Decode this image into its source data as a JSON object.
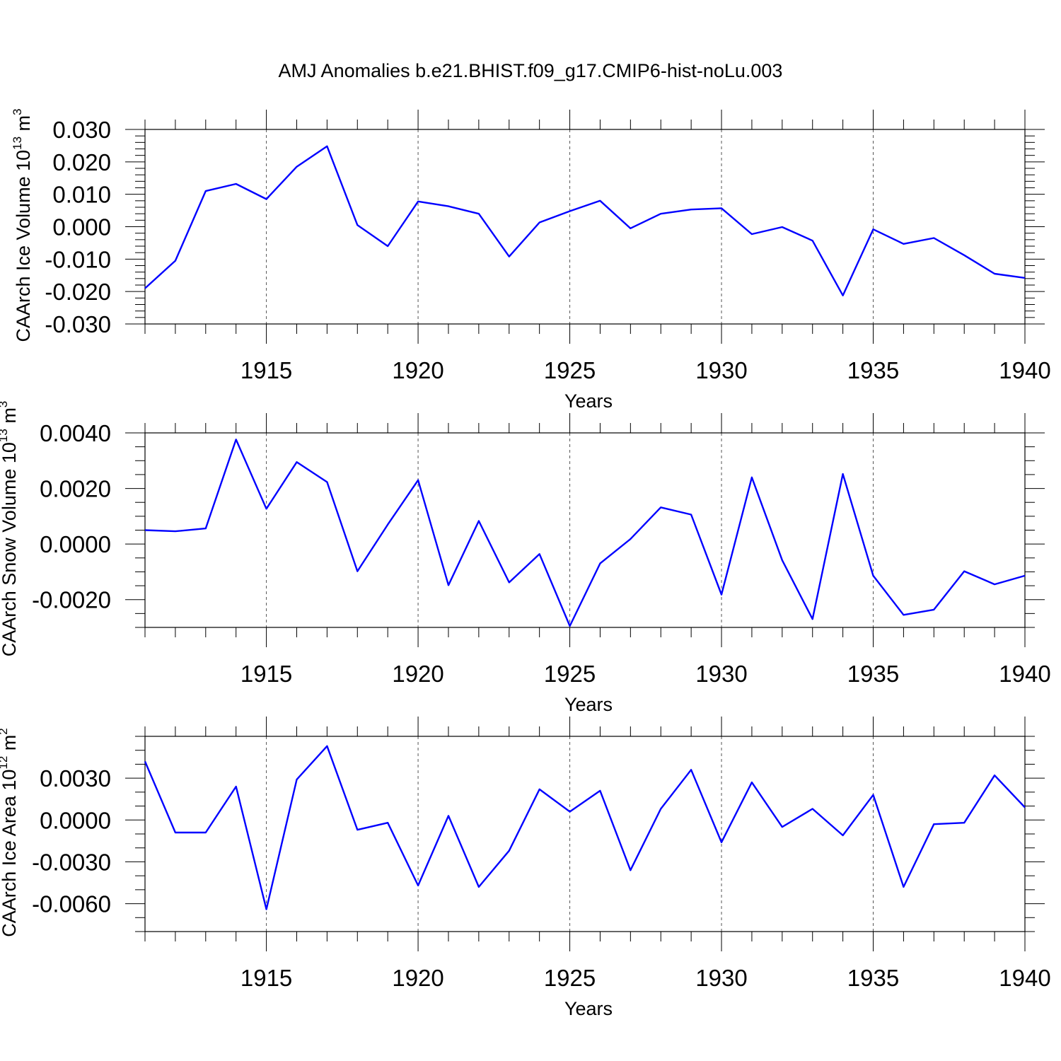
{
  "title": "AMJ Anomalies b.e21.BHIST.f09_g17.CMIP6-hist-noLu.003",
  "chart_data": [
    {
      "type": "line",
      "xlabel": "Years",
      "ylabel": {
        "text": "CAArch Ice Volume 10",
        "exp": "13",
        "unit": " m",
        "unit_exp": "3"
      },
      "xlim": [
        1911,
        1940
      ],
      "ylim": [
        -0.03,
        0.03
      ],
      "xticks": [
        1915,
        1920,
        1925,
        1930,
        1935,
        1940
      ],
      "yticks": [
        -0.03,
        -0.02,
        -0.01,
        0.0,
        0.01,
        0.02,
        0.03
      ],
      "ytick_labels": [
        "-0.030",
        "-0.020",
        "-0.010",
        "0.000",
        "0.010",
        "0.020",
        "0.030"
      ],
      "ytick_minor_step": 0.002,
      "grid_x": [
        1915,
        1920,
        1925,
        1930,
        1935
      ],
      "line_color": "#0000ff",
      "x": [
        1911,
        1912,
        1913,
        1914,
        1915,
        1916,
        1917,
        1918,
        1919,
        1920,
        1921,
        1922,
        1923,
        1924,
        1925,
        1926,
        1927,
        1928,
        1929,
        1930,
        1931,
        1932,
        1933,
        1934,
        1935,
        1936,
        1937,
        1938,
        1939,
        1940
      ],
      "values": [
        -0.019,
        -0.0105,
        0.011,
        0.0132,
        0.0085,
        0.0185,
        0.0248,
        0.0005,
        -0.006,
        0.0078,
        0.0063,
        0.004,
        -0.0092,
        0.0013,
        0.0048,
        0.008,
        -0.0005,
        0.004,
        0.0053,
        0.0057,
        -0.0023,
        -0.0001,
        -0.0043,
        -0.0212,
        -0.0008,
        -0.0053,
        -0.0035,
        -0.0088,
        -0.0145,
        -0.0158
      ]
    },
    {
      "type": "line",
      "xlabel": "Years",
      "ylabel": {
        "text": "CAArch Snow Volume 10",
        "exp": "13",
        "unit": " m",
        "unit_exp": "3"
      },
      "xlim": [
        1911,
        1940
      ],
      "ylim": [
        -0.003,
        0.004
      ],
      "xticks": [
        1915,
        1920,
        1925,
        1930,
        1935,
        1940
      ],
      "yticks": [
        -0.002,
        0.0,
        0.002,
        0.004
      ],
      "ytick_labels": [
        "-0.0020",
        "0.0000",
        "0.0020",
        "0.0040"
      ],
      "ytick_minor_step": 0.0005,
      "grid_x": [
        1915,
        1920,
        1925,
        1930,
        1935
      ],
      "line_color": "#0000ff",
      "x": [
        1911,
        1912,
        1913,
        1914,
        1915,
        1916,
        1917,
        1918,
        1919,
        1920,
        1921,
        1922,
        1923,
        1924,
        1925,
        1926,
        1927,
        1928,
        1929,
        1930,
        1931,
        1932,
        1933,
        1934,
        1935,
        1936,
        1937,
        1938,
        1939,
        1940
      ],
      "values": [
        0.0005,
        0.00046,
        0.00056,
        0.00376,
        0.00127,
        0.00295,
        0.00223,
        -0.00098,
        0.0007,
        0.0023,
        -0.00148,
        0.00083,
        -0.00138,
        -0.00036,
        -0.00295,
        -0.0007,
        0.00018,
        0.00132,
        0.00106,
        -0.00182,
        0.0024,
        -0.00058,
        -0.0027,
        0.00252,
        -0.00114,
        -0.00255,
        -0.00236,
        -0.00098,
        -0.00145,
        -0.00114
      ]
    },
    {
      "type": "line",
      "xlabel": "Years",
      "ylabel": {
        "text": "CAArch Ice Area 10",
        "exp": "12",
        "unit": " m",
        "unit_exp": "2"
      },
      "xlim": [
        1911,
        1940
      ],
      "ylim": [
        -0.008,
        0.006
      ],
      "xticks": [
        1915,
        1920,
        1925,
        1930,
        1935,
        1940
      ],
      "yticks": [
        -0.006,
        -0.003,
        0.0,
        0.003
      ],
      "ytick_labels": [
        "-0.0060",
        "-0.0030",
        "0.0000",
        "0.0030"
      ],
      "ytick_minor_step": 0.001,
      "grid_x": [
        1915,
        1920,
        1925,
        1930,
        1935
      ],
      "line_color": "#0000ff",
      "x": [
        1911,
        1912,
        1913,
        1914,
        1915,
        1916,
        1917,
        1918,
        1919,
        1920,
        1921,
        1922,
        1923,
        1924,
        1925,
        1926,
        1927,
        1928,
        1929,
        1930,
        1931,
        1932,
        1933,
        1934,
        1935,
        1936,
        1937,
        1938,
        1939,
        1940
      ],
      "values": [
        0.0042,
        -0.0009,
        -0.0009,
        0.0024,
        -0.0064,
        0.0029,
        0.0053,
        -0.0007,
        -0.0002,
        -0.0047,
        0.0003,
        -0.0048,
        -0.0022,
        0.0022,
        0.0006,
        0.0021,
        -0.0036,
        0.0008,
        0.0036,
        -0.0016,
        0.0027,
        -0.0005,
        0.0008,
        -0.0011,
        0.0018,
        -0.0048,
        -0.0003,
        -0.0002,
        0.0032,
        0.0009
      ]
    }
  ]
}
